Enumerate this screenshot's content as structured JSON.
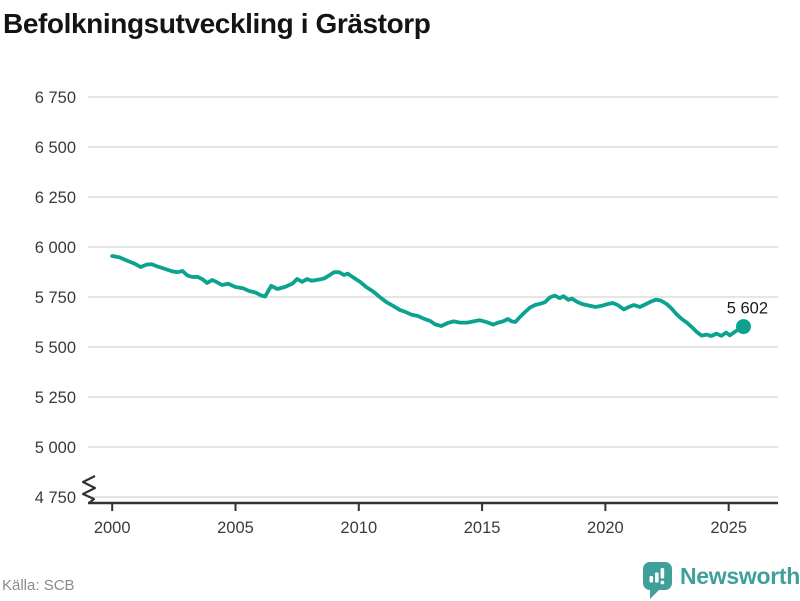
{
  "page": {
    "title": "Befolkningsutveckling i Grästorp",
    "source_label": "Källa: SCB",
    "brand_name": "Newsworthy"
  },
  "branding": {
    "icon": "newsworthy-speech-bubble-chart-icon",
    "color": "#3fa09a"
  },
  "colors": {
    "line": "#0ba390",
    "grid": "#e5e5e5",
    "axis": "#333333",
    "tick_text": "#3b3b3b",
    "title_text": "#141414",
    "muted_text": "#8c8c8c",
    "brand_teal": "#3fa09a"
  },
  "chart_data": {
    "type": "line",
    "title": "Befolkningsutveckling i Grästorp",
    "xlabel": "",
    "ylabel": "",
    "legend": "none",
    "grid": "horizontal",
    "axis_break": true,
    "xlim": [
      1999.1,
      2027.0
    ],
    "ylim": [
      4750,
      6750
    ],
    "x_ticks": {
      "values": [
        2000,
        2005,
        2010,
        2015,
        2020,
        2025
      ],
      "labels": [
        "2000",
        "2005",
        "2010",
        "2015",
        "2020",
        "2025"
      ]
    },
    "y_ticks": {
      "values": [
        6750,
        6500,
        6250,
        6000,
        5750,
        5500,
        5250,
        5000,
        4750
      ],
      "labels": [
        "6 750",
        "6 500",
        "6 250",
        "6 000",
        "5 750",
        "5 500",
        "5 250",
        "5 000",
        "4 750"
      ]
    },
    "end_point": {
      "x": 2025.6,
      "y": 5602,
      "label": "5 602"
    },
    "series": [
      {
        "points": [
          [
            2000.0,
            5955
          ],
          [
            2000.3,
            5948
          ],
          [
            2000.6,
            5932
          ],
          [
            2000.9,
            5917
          ],
          [
            2001.15,
            5900
          ],
          [
            2001.4,
            5912
          ],
          [
            2001.6,
            5914
          ],
          [
            2001.85,
            5902
          ],
          [
            2002.15,
            5890
          ],
          [
            2002.45,
            5878
          ],
          [
            2002.65,
            5874
          ],
          [
            2002.85,
            5880
          ],
          [
            2003.05,
            5858
          ],
          [
            2003.25,
            5850
          ],
          [
            2003.45,
            5851
          ],
          [
            2003.65,
            5840
          ],
          [
            2003.85,
            5820
          ],
          [
            2004.05,
            5835
          ],
          [
            2004.25,
            5824
          ],
          [
            2004.45,
            5810
          ],
          [
            2004.7,
            5816
          ],
          [
            2005.0,
            5800
          ],
          [
            2005.3,
            5794
          ],
          [
            2005.55,
            5780
          ],
          [
            2005.8,
            5773
          ],
          [
            2006.05,
            5757
          ],
          [
            2006.2,
            5752
          ],
          [
            2006.45,
            5806
          ],
          [
            2006.7,
            5790
          ],
          [
            2007.0,
            5800
          ],
          [
            2007.3,
            5816
          ],
          [
            2007.5,
            5840
          ],
          [
            2007.7,
            5826
          ],
          [
            2007.9,
            5840
          ],
          [
            2008.1,
            5831
          ],
          [
            2008.35,
            5836
          ],
          [
            2008.6,
            5843
          ],
          [
            2008.8,
            5858
          ],
          [
            2009.0,
            5874
          ],
          [
            2009.2,
            5874
          ],
          [
            2009.4,
            5860
          ],
          [
            2009.55,
            5867
          ],
          [
            2009.75,
            5850
          ],
          [
            2010.05,
            5826
          ],
          [
            2010.3,
            5800
          ],
          [
            2010.6,
            5776
          ],
          [
            2010.85,
            5750
          ],
          [
            2011.1,
            5726
          ],
          [
            2011.4,
            5705
          ],
          [
            2011.65,
            5686
          ],
          [
            2011.9,
            5675
          ],
          [
            2012.15,
            5661
          ],
          [
            2012.4,
            5655
          ],
          [
            2012.65,
            5641
          ],
          [
            2012.9,
            5630
          ],
          [
            2013.1,
            5613
          ],
          [
            2013.35,
            5605
          ],
          [
            2013.6,
            5620
          ],
          [
            2013.85,
            5628
          ],
          [
            2014.1,
            5622
          ],
          [
            2014.4,
            5622
          ],
          [
            2014.65,
            5628
          ],
          [
            2014.9,
            5634
          ],
          [
            2015.2,
            5624
          ],
          [
            2015.45,
            5612
          ],
          [
            2015.65,
            5622
          ],
          [
            2015.85,
            5628
          ],
          [
            2016.05,
            5640
          ],
          [
            2016.2,
            5628
          ],
          [
            2016.35,
            5625
          ],
          [
            2016.55,
            5652
          ],
          [
            2016.75,
            5676
          ],
          [
            2016.95,
            5698
          ],
          [
            2017.15,
            5710
          ],
          [
            2017.35,
            5716
          ],
          [
            2017.55,
            5724
          ],
          [
            2017.75,
            5748
          ],
          [
            2017.95,
            5757
          ],
          [
            2018.15,
            5744
          ],
          [
            2018.3,
            5754
          ],
          [
            2018.5,
            5736
          ],
          [
            2018.65,
            5742
          ],
          [
            2018.85,
            5726
          ],
          [
            2019.05,
            5715
          ],
          [
            2019.3,
            5708
          ],
          [
            2019.6,
            5700
          ],
          [
            2019.85,
            5706
          ],
          [
            2020.1,
            5715
          ],
          [
            2020.3,
            5720
          ],
          [
            2020.5,
            5710
          ],
          [
            2020.75,
            5688
          ],
          [
            2020.95,
            5700
          ],
          [
            2021.15,
            5710
          ],
          [
            2021.4,
            5700
          ],
          [
            2021.65,
            5715
          ],
          [
            2021.85,
            5727
          ],
          [
            2022.05,
            5737
          ],
          [
            2022.25,
            5732
          ],
          [
            2022.5,
            5714
          ],
          [
            2022.7,
            5690
          ],
          [
            2022.9,
            5662
          ],
          [
            2023.1,
            5640
          ],
          [
            2023.3,
            5622
          ],
          [
            2023.5,
            5600
          ],
          [
            2023.7,
            5576
          ],
          [
            2023.9,
            5557
          ],
          [
            2024.1,
            5562
          ],
          [
            2024.3,
            5555
          ],
          [
            2024.5,
            5567
          ],
          [
            2024.7,
            5556
          ],
          [
            2024.9,
            5572
          ],
          [
            2025.05,
            5558
          ],
          [
            2025.25,
            5576
          ],
          [
            2025.45,
            5592
          ],
          [
            2025.6,
            5602
          ]
        ]
      }
    ]
  }
}
